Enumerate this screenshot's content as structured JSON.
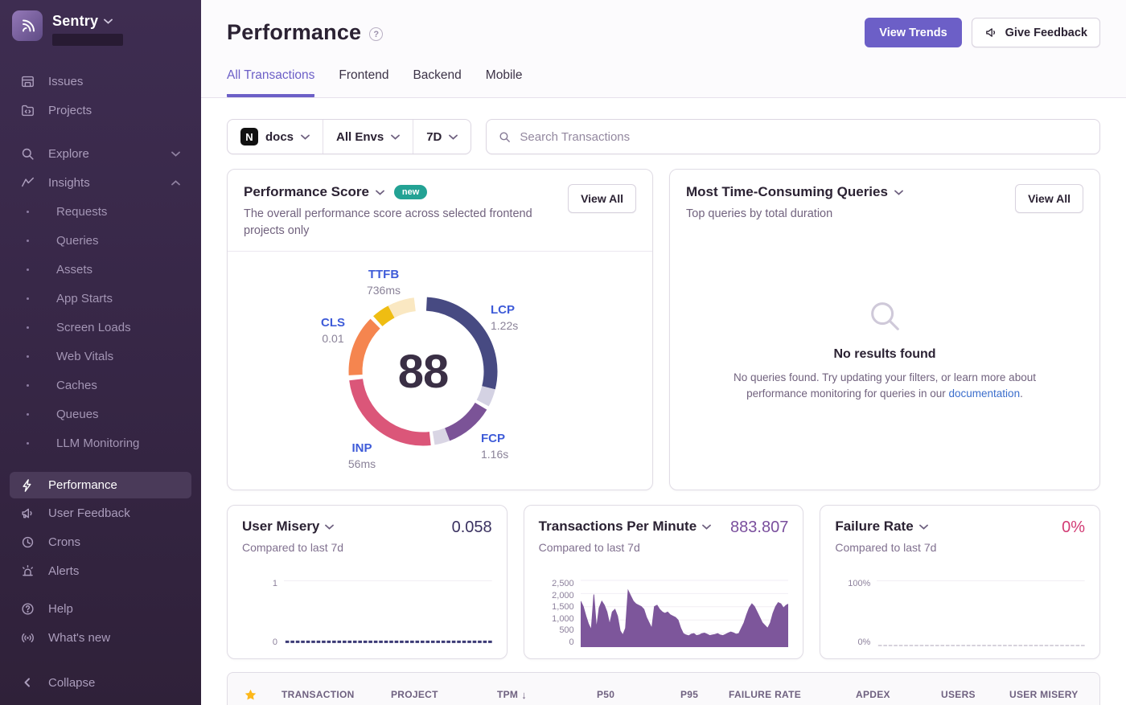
{
  "sidebar": {
    "brand": "Sentry",
    "primary": [
      {
        "label": "Issues"
      },
      {
        "label": "Projects"
      }
    ],
    "explore": {
      "label": "Explore"
    },
    "insights": {
      "label": "Insights",
      "items": [
        {
          "label": "Requests"
        },
        {
          "label": "Queries"
        },
        {
          "label": "Assets"
        },
        {
          "label": "App Starts"
        },
        {
          "label": "Screen Loads"
        },
        {
          "label": "Web Vitals"
        },
        {
          "label": "Caches"
        },
        {
          "label": "Queues"
        },
        {
          "label": "LLM Monitoring"
        }
      ]
    },
    "tools": [
      {
        "label": "Performance",
        "active": true
      },
      {
        "label": "User Feedback"
      },
      {
        "label": "Crons"
      },
      {
        "label": "Alerts"
      }
    ],
    "footer": [
      {
        "label": "Help"
      },
      {
        "label": "What's new"
      }
    ],
    "collapse": "Collapse"
  },
  "header": {
    "title": "Performance",
    "view_trends": "View Trends",
    "give_feedback": "Give Feedback",
    "tabs": [
      {
        "label": "All Transactions",
        "active": true
      },
      {
        "label": "Frontend"
      },
      {
        "label": "Backend"
      },
      {
        "label": "Mobile"
      }
    ]
  },
  "filters": {
    "project": "docs",
    "project_platform_letter": "N",
    "environment": "All Envs",
    "period": "7D",
    "search_placeholder": "Search Transactions"
  },
  "cards": {
    "performance_score": {
      "title": "Performance Score",
      "badge": "new",
      "description": "The overall performance score across selected frontend projects only",
      "view_all": "View All"
    },
    "queries": {
      "title": "Most Time-Consuming Queries",
      "subtitle": "Top queries by total duration",
      "view_all": "View All",
      "empty_title": "No results found",
      "empty_body_1": "No queries found. Try updating your filters, or learn more about performance monitoring for queries in our ",
      "empty_link": "documentation",
      "empty_body_2": "."
    },
    "user_misery": {
      "title": "User Misery",
      "subtitle": "Compared to last 7d",
      "value": "0.058"
    },
    "tpm": {
      "title": "Transactions Per Minute",
      "subtitle": "Compared to last 7d",
      "value": "883.807"
    },
    "failure_rate": {
      "title": "Failure Rate",
      "subtitle": "Compared to last 7d",
      "value": "0%"
    }
  },
  "table": {
    "columns": [
      "TRANSACTION",
      "PROJECT",
      "TPM",
      "P50",
      "P95",
      "FAILURE RATE",
      "APDEX",
      "USERS",
      "USER MISERY"
    ],
    "sorted_column": "TPM",
    "sort_indicator": "↓"
  },
  "chart_data": [
    {
      "id": "performance_score_ring",
      "type": "donut",
      "title": "Performance Score",
      "score": 88,
      "vitals": [
        {
          "name": "TTFB",
          "value": "736ms"
        },
        {
          "name": "LCP",
          "value": "1.22s"
        },
        {
          "name": "CLS",
          "value": "0.01"
        },
        {
          "name": "INP",
          "value": "56ms"
        },
        {
          "name": "FCP",
          "value": "1.16s"
        }
      ],
      "arcs": [
        {
          "name": "LCP",
          "start": 3,
          "end": 104,
          "color": "#474a82"
        },
        {
          "name": "LCP-remainder",
          "start": 104,
          "end": 118,
          "color": "#d4d2e3"
        },
        {
          "name": "FCP",
          "start": 121,
          "end": 159,
          "color": "#7b5397"
        },
        {
          "name": "FCP-remainder",
          "start": 159,
          "end": 171,
          "color": "#d9d5e4"
        },
        {
          "name": "INP",
          "start": 174,
          "end": 263,
          "color": "#db5679"
        },
        {
          "name": "CLS",
          "start": 267,
          "end": 315,
          "color": "#f5854f"
        },
        {
          "name": "TTFB",
          "start": 318,
          "end": 332,
          "color": "#efbd12"
        },
        {
          "name": "TTFB-remainder",
          "start": 332,
          "end": 353,
          "color": "#fae8c2"
        }
      ]
    },
    {
      "id": "user_misery",
      "type": "line",
      "value": 0.058,
      "ylim": [
        0,
        1
      ],
      "yticks": [
        "1",
        "0"
      ],
      "line_color": "#3b3a75",
      "dashed": true
    },
    {
      "id": "tpm",
      "type": "area",
      "value": 883.807,
      "ylim": [
        0,
        2500
      ],
      "yticks": [
        "2,500",
        "2,000",
        "1,500",
        "1,000",
        "500",
        "0"
      ],
      "color": "#7d569b",
      "values": [
        1700,
        1500,
        1150,
        850,
        650,
        1950,
        700,
        1450,
        1700,
        1550,
        1300,
        850,
        1300,
        1400,
        1150,
        600,
        450,
        700,
        2100,
        1900,
        1700,
        1600,
        1550,
        1500,
        1400,
        1100,
        900,
        700,
        1500,
        1550,
        1400,
        1300,
        1250,
        1300,
        1200,
        1150,
        1100,
        1000,
        700,
        500,
        450,
        420,
        480,
        500,
        430,
        450,
        500,
        520,
        480,
        430,
        450,
        470,
        500,
        450,
        430,
        470,
        520,
        560,
        530,
        480,
        500,
        700,
        900,
        1200,
        1450,
        1600,
        1500,
        1300,
        1100,
        900,
        800,
        700,
        900,
        1250,
        1500,
        1650,
        1600,
        1450,
        1550,
        1600
      ]
    },
    {
      "id": "failure_rate",
      "type": "line",
      "value": 0,
      "ylim": [
        0,
        100
      ],
      "yticks": [
        "100%",
        "0%"
      ],
      "line_color": "#c9c3d1",
      "dashed": true
    }
  ],
  "palette": {
    "accent_purple": "#6c5fc7",
    "sidebar_bg": "#362645",
    "badge_teal": "#23a294",
    "link_blue": "#3b6ecc",
    "star_gold": "#fdb81b",
    "failure_pink": "#d23b74"
  }
}
